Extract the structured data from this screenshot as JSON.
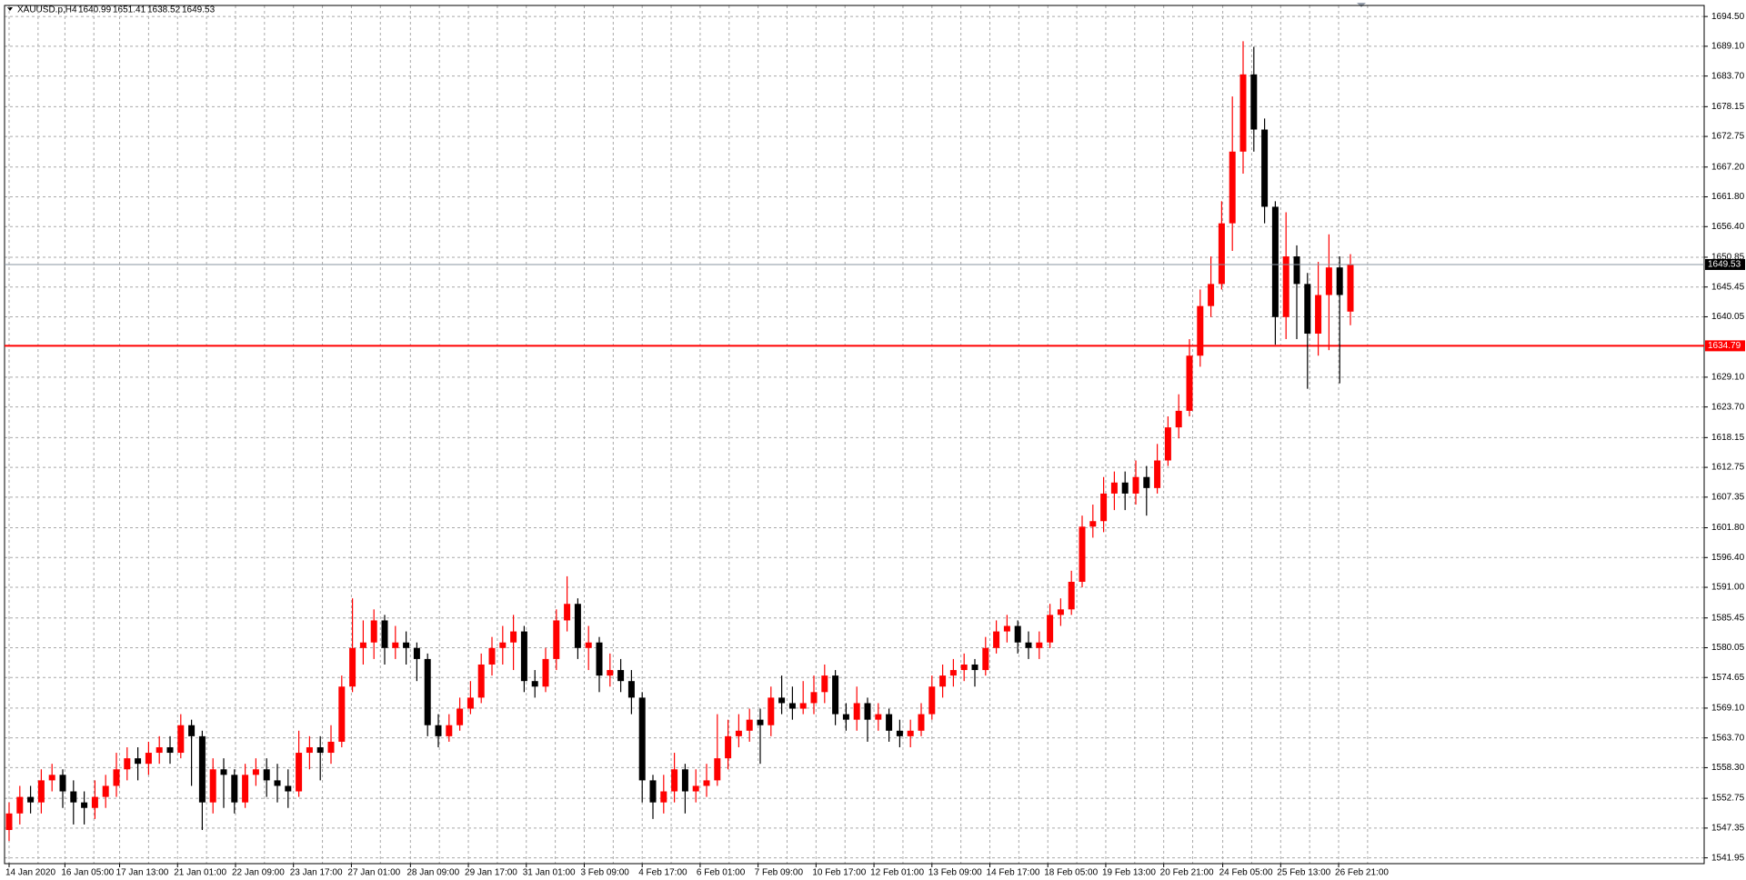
{
  "chart_data": {
    "type": "candlestick",
    "symbol": "XAUUSD.p,H4",
    "up_color": "#ff0000",
    "down_color": "#000000",
    "grid": true,
    "ylim": [
      1540.9,
      1696.5
    ],
    "yticks": [
      1541.95,
      1547.35,
      1552.75,
      {
        "value": 1558.3,
        "label": "1558.30"
      },
      {
        "value": 1563.7,
        "label": "1563.70"
      },
      {
        "value": 1569.1,
        "label": "1569.10"
      },
      1574.65,
      1580.05,
      1585.45,
      {
        "value": 1591,
        "label": "1591.00"
      },
      {
        "value": 1596.4,
        "label": "1596.40"
      },
      {
        "value": 1601.8,
        "label": "1601.80"
      },
      1607.35,
      1612.75,
      1618.15,
      {
        "value": 1623.7,
        "label": "1623.70"
      },
      {
        "value": 1629.1,
        "label": "1629.10"
      },
      1640.05,
      1645.45,
      1650.85,
      {
        "value": 1656.4,
        "label": "1656.40"
      },
      {
        "value": 1661.8,
        "label": "1661.80"
      },
      {
        "value": 1667.2,
        "label": "1667.20"
      },
      1672.75,
      1678.15,
      {
        "value": 1683.7,
        "label": "1683.70"
      },
      {
        "value": 1689.1,
        "label": "1689.10"
      },
      {
        "value": 1694.5,
        "label": "1694.50"
      }
    ],
    "xticks": [
      {
        "value": 0,
        "label": "14 Jan 2020"
      },
      {
        "value": 5.2,
        "label": "16 Jan 05:00"
      },
      {
        "value": 10.3,
        "label": "17 Jan 13:00"
      },
      {
        "value": 15.7,
        "label": "21 Jan 01:00"
      },
      {
        "value": 21.1,
        "label": "22 Jan 09:00"
      },
      {
        "value": 26.5,
        "label": "23 Jan 17:00"
      },
      {
        "value": 31.9,
        "label": "27 Jan 01:00"
      },
      {
        "value": 37.4,
        "label": "28 Jan 09:00"
      },
      {
        "value": 42.8,
        "label": "29 Jan 17:00"
      },
      {
        "value": 48.2,
        "label": "31 Jan 01:00"
      },
      {
        "value": 53.6,
        "label": "3 Feb 09:00"
      },
      {
        "value": 59,
        "label": "4 Feb 17:00"
      },
      {
        "value": 64.4,
        "label": "6 Feb 01:00"
      },
      {
        "value": 69.8,
        "label": "7 Feb 09:00"
      },
      {
        "value": 75.2,
        "label": "10 Feb 17:00"
      },
      {
        "value": 80.6,
        "label": "12 Feb 01:00"
      },
      {
        "value": 86,
        "label": "13 Feb 09:00"
      },
      {
        "value": 91.4,
        "label": "14 Feb 17:00"
      },
      {
        "value": 96.8,
        "label": "18 Feb 05:00"
      },
      {
        "value": 102.2,
        "label": "19 Feb 13:00"
      },
      {
        "value": 107.6,
        "label": "20 Feb 21:00"
      },
      {
        "value": 113.1,
        "label": "24 Feb 05:00"
      },
      {
        "value": 118.5,
        "label": "25 Feb 13:00"
      },
      {
        "value": 123.9,
        "label": "26 Feb 21:00"
      }
    ],
    "hline": {
      "value": 1634.79,
      "color": "#ff0000"
    },
    "series": {
      "open": [
        1547,
        1550,
        1553,
        1552,
        1556,
        1557,
        1554,
        1552,
        1551,
        1553,
        1555,
        1558,
        1560,
        1559,
        1561,
        1562,
        1561,
        1566,
        1564,
        1552,
        1558,
        1557,
        1552,
        1557,
        1558,
        1556,
        1555,
        1554,
        1561,
        1562,
        1561,
        1563,
        1573,
        1580,
        1581,
        1585,
        1580,
        1581,
        1580,
        1578,
        1566,
        1564,
        1566,
        1569,
        1571,
        1577,
        1580,
        1581,
        1583,
        1574,
        1573,
        1578,
        1585,
        1588,
        1580,
        1581,
        1575,
        1576,
        1574,
        1571,
        1556,
        1552,
        1554,
        1558,
        1554,
        1555,
        1556,
        1560,
        1564,
        1565,
        1567,
        1566,
        1571,
        1570,
        1569,
        1570,
        1572,
        1575,
        1568,
        1567,
        1570,
        1567,
        1568,
        1565,
        1564,
        1565,
        1568,
        1573,
        1575,
        1576,
        1577,
        1576,
        1580,
        1583,
        1584,
        1581,
        1580,
        1581,
        1586,
        1587,
        1592,
        1602,
        1603,
        1608,
        1610,
        1608,
        1611,
        1609,
        1614,
        1620,
        1623,
        1633,
        1642,
        1646,
        1657,
        1670,
        1684,
        1674,
        1660,
        1640,
        1651,
        1646,
        1637,
        1644,
        1649,
        1640.99
      ],
      "high": [
        1552,
        1555,
        1555,
        1558,
        1559,
        1558,
        1556,
        1554,
        1556,
        1557,
        1561,
        1562,
        1562,
        1563,
        1564,
        1564,
        1568,
        1567,
        1565,
        1560,
        1560,
        1558,
        1559,
        1560,
        1560,
        1559,
        1558,
        1565,
        1564,
        1564,
        1566,
        1575,
        1589,
        1585,
        1587,
        1586,
        1584,
        1583,
        1581,
        1579,
        1568,
        1568,
        1571,
        1574,
        1579,
        1582,
        1584,
        1586,
        1584,
        1576,
        1580,
        1587,
        1593,
        1589,
        1584,
        1582,
        1579,
        1578,
        1576,
        1572,
        1557,
        1557,
        1561,
        1559,
        1558,
        1559,
        1568,
        1567,
        1568,
        1569,
        1569,
        1573,
        1575,
        1573,
        1574,
        1575,
        1577,
        1576,
        1570,
        1573,
        1571,
        1570,
        1569,
        1567,
        1567,
        1570,
        1575,
        1577,
        1578,
        1579,
        1578,
        1582,
        1585,
        1586,
        1585,
        1583,
        1583,
        1588,
        1589,
        1594,
        1604,
        1606,
        1611,
        1612,
        1612,
        1614,
        1613,
        1617,
        1622,
        1626,
        1636,
        1645,
        1651,
        1661,
        1680,
        1690,
        1689,
        1676,
        1661,
        1659,
        1653,
        1648,
        1650,
        1655,
        1651,
        1651.41
      ],
      "low": [
        1545,
        1548,
        1550,
        1550,
        1554,
        1551,
        1548,
        1548,
        1549,
        1551,
        1553,
        1556,
        1556,
        1557,
        1559,
        1559,
        1560,
        1555,
        1547,
        1550,
        1551,
        1550,
        1551,
        1555,
        1553,
        1552,
        1551,
        1553,
        1558,
        1556,
        1559,
        1562,
        1572,
        1577,
        1578,
        1577,
        1578,
        1577,
        1574,
        1564,
        1562,
        1563,
        1565,
        1568,
        1570,
        1575,
        1577,
        1576,
        1572,
        1571,
        1572,
        1576,
        1583,
        1578,
        1576,
        1572,
        1573,
        1572,
        1568,
        1552,
        1549,
        1550,
        1552,
        1550,
        1552,
        1553,
        1555,
        1558,
        1562,
        1563,
        1559,
        1564,
        1568,
        1567,
        1568,
        1568,
        1570,
        1566,
        1565,
        1565,
        1563,
        1565,
        1563,
        1562,
        1562,
        1564,
        1567,
        1571,
        1573,
        1574,
        1573,
        1575,
        1579,
        1581,
        1579,
        1578,
        1578,
        1580,
        1584,
        1586,
        1591,
        1600,
        1601,
        1605,
        1605,
        1606,
        1604,
        1608,
        1613,
        1618,
        1622,
        1631,
        1640,
        1645,
        1652,
        1666,
        1670,
        1657,
        1635,
        1636,
        1636,
        1627,
        1633,
        1634,
        1628,
        1638.52
      ],
      "close": [
        1550,
        1553,
        1552,
        1556,
        1557,
        1554,
        1552,
        1551,
        1553,
        1555,
        1558,
        1560,
        1559,
        1561,
        1562,
        1561,
        1566,
        1564,
        1552,
        1558,
        1557,
        1552,
        1557,
        1558,
        1556,
        1555,
        1554,
        1561,
        1562,
        1561,
        1563,
        1573,
        1580,
        1581,
        1585,
        1580,
        1581,
        1580,
        1578,
        1566,
        1564,
        1566,
        1569,
        1571,
        1577,
        1580,
        1581,
        1583,
        1574,
        1573,
        1578,
        1585,
        1588,
        1580,
        1581,
        1575,
        1576,
        1574,
        1571,
        1556,
        1552,
        1554,
        1558,
        1554,
        1555,
        1556,
        1560,
        1564,
        1565,
        1567,
        1566,
        1571,
        1570,
        1569,
        1570,
        1572,
        1575,
        1568,
        1567,
        1570,
        1567,
        1568,
        1565,
        1564,
        1565,
        1568,
        1573,
        1575,
        1576,
        1577,
        1576,
        1580,
        1583,
        1584,
        1581,
        1580,
        1581,
        1586,
        1587,
        1592,
        1602,
        1603,
        1608,
        1610,
        1608,
        1611,
        1609,
        1614,
        1620,
        1623,
        1633,
        1642,
        1646,
        1657,
        1670,
        1684,
        1674,
        1660,
        1640,
        1651,
        1646,
        1637,
        1644,
        1649,
        1644,
        1649.53
      ]
    }
  }
}
